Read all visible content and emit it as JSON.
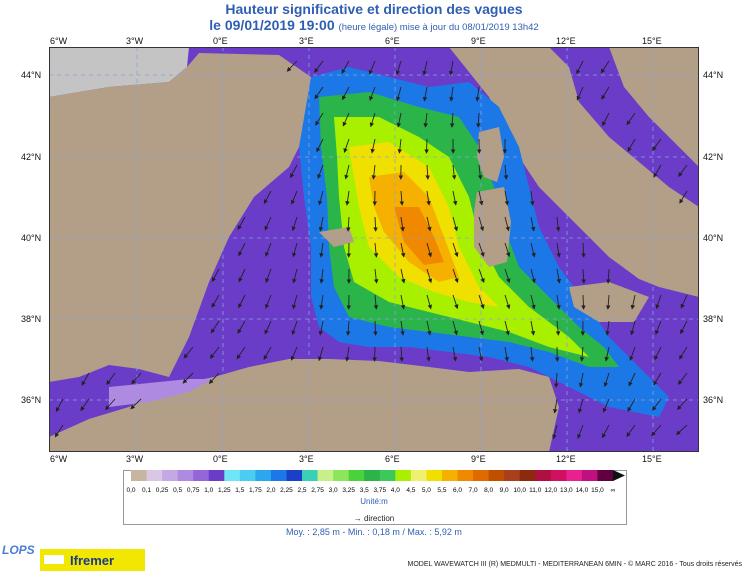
{
  "header": {
    "title": "Hauteur significative et direction des vagues",
    "date_main": "le 09/01/2019 19:00",
    "date_note": "(heure légale) mise à jour du 08/01/2019 13h42"
  },
  "axes": {
    "lon_labels": [
      "6°W",
      "3°W",
      "0°E",
      "3°E",
      "6°E",
      "9°E",
      "12°E",
      "15°E"
    ],
    "lat_labels": [
      "44°N",
      "42°N",
      "40°N",
      "38°N",
      "36°N"
    ]
  },
  "legend": {
    "labels": [
      "0,0",
      "0,1",
      "0,25",
      "0,5",
      "0,75",
      "1,0",
      "1,25",
      "1,5",
      "1,75",
      "2,0",
      "2,25",
      "2,5",
      "2,75",
      "3,0",
      "3,25",
      "3,5",
      "3,75",
      "4,0",
      "4,5",
      "5,0",
      "5,5",
      "6,0",
      "7,0",
      "8,0",
      "9,0",
      "10,0",
      "11,0",
      "12,0",
      "13,0",
      "14,0",
      "15,0",
      "∞"
    ],
    "colors": [
      "#c8b5a0",
      "#d8c8e6",
      "#c4a8e4",
      "#b08ae0",
      "#9466d8",
      "#6a3cc8",
      "#6ee6f6",
      "#4acdf0",
      "#2aa7ee",
      "#1c78e6",
      "#1c3fc8",
      "#3ad0b8",
      "#c8f08a",
      "#8ce65a",
      "#4ad23a",
      "#2ab44a",
      "#3cc85a",
      "#a8f000",
      "#f0f070",
      "#f0e000",
      "#f6b000",
      "#f08800",
      "#e06a00",
      "#c05000",
      "#a8401e",
      "#8c2a10",
      "#b01040",
      "#d01060",
      "#e82090",
      "#c01080",
      "#600040"
    ],
    "unit": "Unité:m",
    "direction_label": "direction"
  },
  "stats": "Moy. : 2,85 m   -   Min. : 0,18 m / Max. : 5,92 m",
  "footer": {
    "credit": "MODEL WAVEWATCH III (R) MEDMULTI - MEDITERRANEAN 6MIN - © MARC 2016 - Tous droits réservés",
    "logo_lops": "LOPS",
    "logo_ifremer": "Ifremer"
  },
  "map": {
    "region": "Western Mediterranean",
    "lon_range": [
      -6,
      17
    ],
    "lat_range": [
      35,
      45
    ],
    "colors": {
      "land": "#b39f87",
      "land_outside": "#c4c4c4",
      "sea_low": "#6a3cc8",
      "sea_high": "#f08800",
      "grid": "#8aa0e0",
      "arrow": "#222222"
    }
  }
}
